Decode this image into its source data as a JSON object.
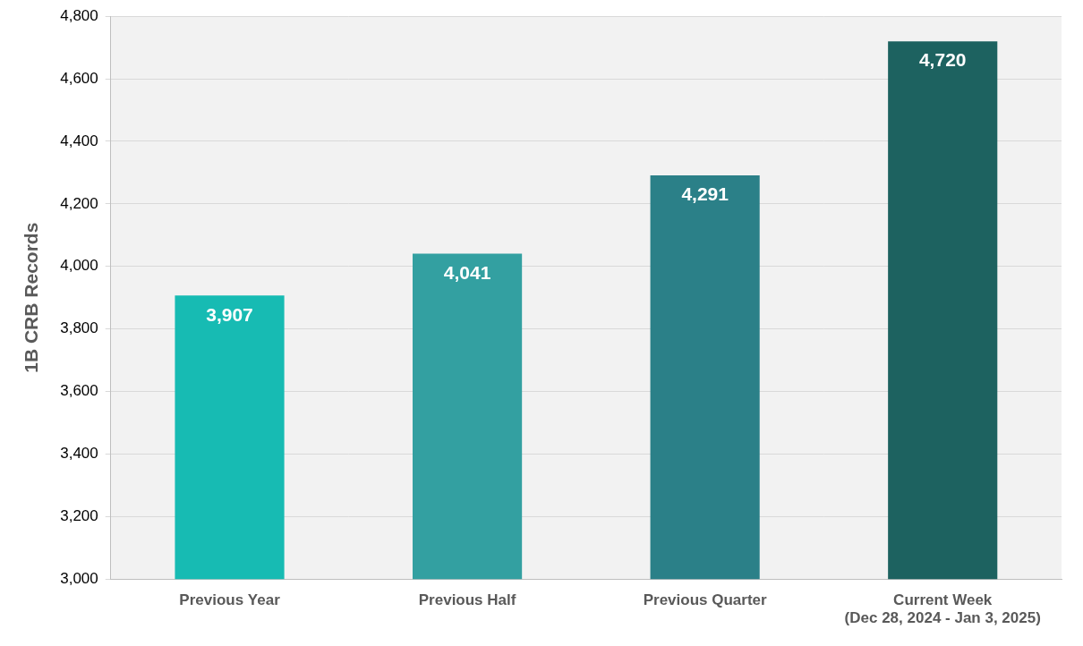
{
  "chart_data": {
    "type": "bar",
    "y_label": "1B CRB Records",
    "categories": [
      "Previous Year",
      "Previous Half",
      "Previous Quarter",
      "Current Week\n(Dec 28, 2024 - Jan 3, 2025)"
    ],
    "values": [
      3907,
      4041,
      4291,
      4720
    ],
    "value_labels": [
      "3,907",
      "4,041",
      "4,291",
      "4,720"
    ],
    "colors": [
      "#17bbb3",
      "#33a0a1",
      "#2b8088",
      "#1d6260"
    ],
    "ylim": [
      3000,
      4800
    ],
    "yticks": [
      {
        "value": 3000,
        "label": "3,000"
      },
      {
        "value": 3200,
        "label": "3,200"
      },
      {
        "value": 3400,
        "label": "3,400"
      },
      {
        "value": 3600,
        "label": "3,600"
      },
      {
        "value": 3800,
        "label": "3,800"
      },
      {
        "value": 4000,
        "label": "4,000"
      },
      {
        "value": 4200,
        "label": "4,200"
      },
      {
        "value": 4400,
        "label": "4,400"
      },
      {
        "value": 4600,
        "label": "4,600"
      },
      {
        "value": 4800,
        "label": "4,800"
      }
    ],
    "grid": true,
    "data_labels": true,
    "legend": false
  }
}
